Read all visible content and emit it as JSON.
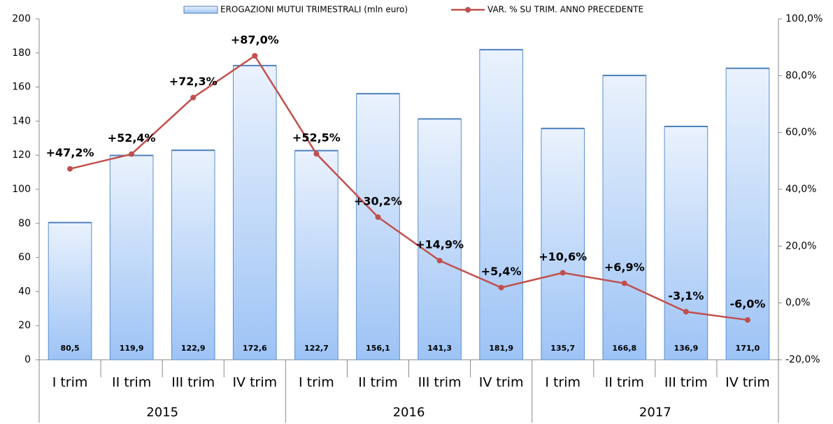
{
  "chart_data": {
    "type": "bar-line",
    "categories": [
      "I trim",
      "II trim",
      "III trim",
      "IV trim",
      "I trim",
      "II trim",
      "III trim",
      "IV trim",
      "I trim",
      "II trim",
      "III trim",
      "IV trim"
    ],
    "category_groups": [
      "2015",
      "2016",
      "2017"
    ],
    "series": [
      {
        "name": "EROGAZIONI MUTUI TRIMESTRALI (mln euro)",
        "type": "bar",
        "color": "#9dc3f5",
        "values": [
          80.5,
          119.9,
          122.9,
          172.6,
          122.7,
          156.1,
          141.3,
          181.9,
          135.7,
          166.8,
          136.9,
          171.0
        ],
        "value_labels": [
          "80,5",
          "119,9",
          "122,9",
          "172,6",
          "122,7",
          "156,1",
          "141,3",
          "181,9",
          "135,7",
          "166,8",
          "136,9",
          "171,0"
        ]
      },
      {
        "name": "VAR. % SU TRIM. ANNO PRECEDENTE",
        "type": "line",
        "axis": "y2",
        "color": "#c0504d",
        "values": [
          47.2,
          52.4,
          72.3,
          87.0,
          52.5,
          30.2,
          14.9,
          5.4,
          10.6,
          6.9,
          -3.1,
          -6.0
        ],
        "value_labels": [
          "+47,2%",
          "+52,4%",
          "+72,3%",
          "+87,0%",
          "+52,5%",
          "+30,2%",
          "+14,9%",
          "+5,4%",
          "+10,6%",
          "+6,9%",
          "-3,1%",
          "-6,0%"
        ]
      }
    ],
    "ylim": [
      0,
      200
    ],
    "yticks": [
      0,
      20,
      40,
      60,
      80,
      100,
      120,
      140,
      160,
      180,
      200
    ],
    "y2lim": [
      -20,
      100
    ],
    "y2ticks": [
      {
        "value": -20,
        "label": "-20,0%"
      },
      {
        "value": 0,
        "label": "0,0%"
      },
      {
        "value": 20,
        "label": "20,0%"
      },
      {
        "value": 40,
        "label": "40,0%"
      },
      {
        "value": 60,
        "label": "60,0%"
      },
      {
        "value": 80,
        "label": "80,0%"
      },
      {
        "value": 100,
        "label": "100,0%"
      }
    ],
    "legend": "top"
  }
}
